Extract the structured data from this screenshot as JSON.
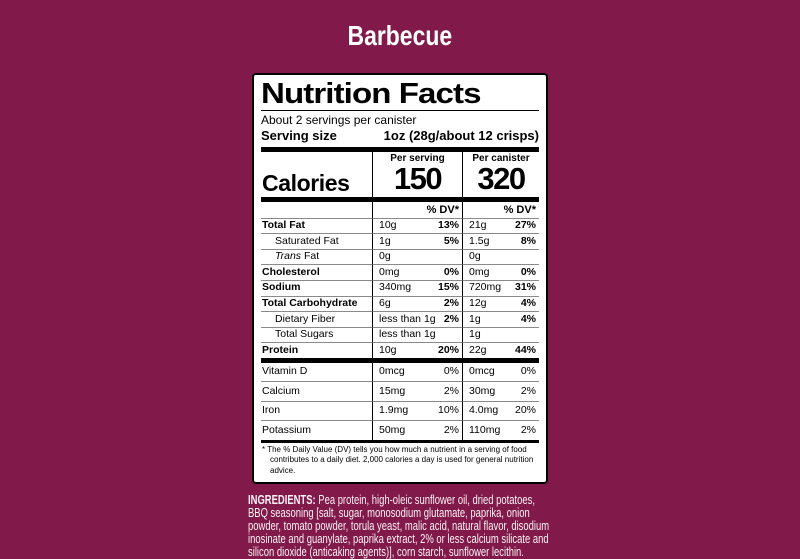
{
  "page": {
    "title": "Barbecue",
    "background_color": "#811A4A",
    "text_color": "#FFFFFF"
  },
  "nutrition_label": {
    "heading": "Nutrition Facts",
    "servings_per_container": "About 2 servings per canister",
    "serving_size": {
      "label": "Serving size",
      "value": "1oz (28g/about 12 crisps)"
    },
    "calories": {
      "label": "Calories",
      "per_serving": {
        "header": "Per serving",
        "value": "150"
      },
      "per_canister": {
        "header": "Per canister",
        "value": "320"
      }
    },
    "dv_column_header": "% DV*",
    "nutrients": [
      {
        "name": "Total Fat",
        "bold": true,
        "indent": false,
        "serving_qty": "10g",
        "serving_dv": "13%",
        "canister_qty": "21g",
        "canister_dv": "27%"
      },
      {
        "name": "Saturated Fat",
        "bold": false,
        "indent": true,
        "serving_qty": "1g",
        "serving_dv": "5%",
        "canister_qty": "1.5g",
        "canister_dv": "8%"
      },
      {
        "name": "Fat",
        "name_italic_prefix": "Trans ",
        "bold": false,
        "indent": true,
        "serving_qty": "0g",
        "serving_dv": "",
        "canister_qty": "0g",
        "canister_dv": ""
      },
      {
        "name": "Cholesterol",
        "bold": true,
        "indent": false,
        "serving_qty": "0mg",
        "serving_dv": "0%",
        "canister_qty": "0mg",
        "canister_dv": "0%"
      },
      {
        "name": "Sodium",
        "bold": true,
        "indent": false,
        "serving_qty": "340mg",
        "serving_dv": "15%",
        "canister_qty": "720mg",
        "canister_dv": "31%"
      },
      {
        "name": "Total Carbohydrate",
        "bold": true,
        "indent": false,
        "serving_qty": "6g",
        "serving_dv": "2%",
        "canister_qty": "12g",
        "canister_dv": "4%"
      },
      {
        "name": "Dietary Fiber",
        "bold": false,
        "indent": true,
        "serving_qty": "less than 1g",
        "serving_dv": "2%",
        "canister_qty": "1g",
        "canister_dv": "4%"
      },
      {
        "name": "Total Sugars",
        "bold": false,
        "indent": true,
        "serving_qty": "less than 1g",
        "serving_dv": "",
        "canister_qty": "1g",
        "canister_dv": ""
      },
      {
        "name": "Protein",
        "bold": true,
        "indent": false,
        "serving_qty": "10g",
        "serving_dv": "20%",
        "canister_qty": "22g",
        "canister_dv": "44%"
      }
    ],
    "micronutrients": [
      {
        "name": "Vitamin D",
        "serving_qty": "0mcg",
        "serving_dv": "0%",
        "canister_qty": "0mcg",
        "canister_dv": "0%"
      },
      {
        "name": "Calcium",
        "serving_qty": "15mg",
        "serving_dv": "2%",
        "canister_qty": "30mg",
        "canister_dv": "2%"
      },
      {
        "name": "Iron",
        "serving_qty": "1.9mg",
        "serving_dv": "10%",
        "canister_qty": "4.0mg",
        "canister_dv": "20%"
      },
      {
        "name": "Potassium",
        "serving_qty": "50mg",
        "serving_dv": "2%",
        "canister_qty": "110mg",
        "canister_dv": "2%"
      }
    ],
    "footnote": "* The % Daily Value (DV) tells you how much a nutrient in a serving of food contributes to a daily diet. 2,000 calories a day is used for general nutrition advice."
  },
  "ingredients": {
    "label": "INGREDIENTS:",
    "text": "Pea protein, high-oleic sunflower oil, dried potatoes, BBQ seasoning [salt, sugar, monosodium glutamate, paprika, onion powder, tomato powder, torula yeast, malic acid, natural flavor, disodium inosinate and guanylate, paprika extract, 2% or less calcium silicate and silicon dioxide (anticaking agents)], corn starch, sunflower lecithin."
  }
}
